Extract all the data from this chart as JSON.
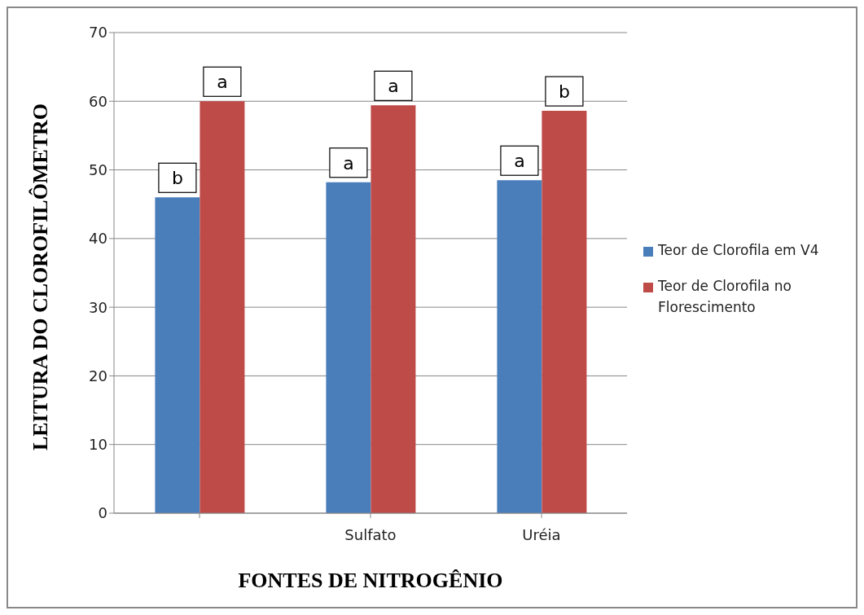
{
  "chart_data": {
    "type": "bar",
    "xlabel": "FONTES DE NITROGÊNIO",
    "ylabel": "LEITURA DO CLOROFILÔMETRO",
    "categories": [
      null,
      "Sulfato",
      "Uréia"
    ],
    "series": [
      {
        "name": "Teor de Clorofila em V4",
        "color": "#4a7ebb",
        "values": [
          46,
          48.2,
          48.5
        ]
      },
      {
        "name": "Teor de Clorofila no Florescimento",
        "color": "#be4b48",
        "values": [
          60,
          59.4,
          58.6
        ]
      }
    ],
    "annotations": [
      "b",
      "a",
      "a",
      "a",
      "a",
      "b"
    ],
    "ylim": [
      0,
      70
    ],
    "yticks": [
      0,
      10,
      20,
      30,
      40,
      50,
      60,
      70
    ],
    "grid": "y",
    "legend": "right"
  }
}
